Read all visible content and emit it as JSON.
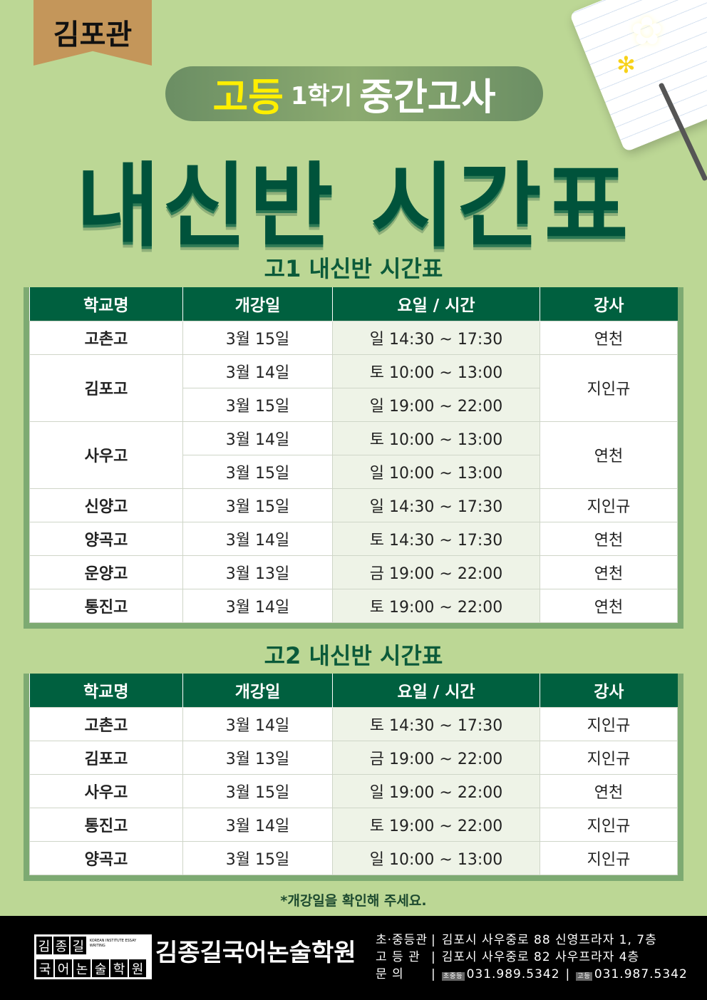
{
  "branch": "김포관",
  "banner": {
    "highlight": "고등",
    "term": "1학기",
    "exam": "중간고사"
  },
  "main_title": "내신반 시간표",
  "columns": [
    "학교명",
    "개강일",
    "요일 / 시간",
    "강사"
  ],
  "tables": [
    {
      "title": "고1 내신반 시간표",
      "schools": [
        {
          "name": "고촌고",
          "teacher": "연천",
          "sessions": [
            {
              "date": "3월 15일",
              "time": "일 14:30 ~ 17:30"
            }
          ]
        },
        {
          "name": "김포고",
          "teacher": "지인규",
          "sessions": [
            {
              "date": "3월 14일",
              "time": "토 10:00 ~ 13:00"
            },
            {
              "date": "3월 15일",
              "time": "일 19:00 ~ 22:00"
            }
          ]
        },
        {
          "name": "사우고",
          "teacher": "연천",
          "sessions": [
            {
              "date": "3월 14일",
              "time": "토 10:00 ~ 13:00"
            },
            {
              "date": "3월 15일",
              "time": "일 10:00 ~ 13:00"
            }
          ]
        },
        {
          "name": "신양고",
          "teacher": "지인규",
          "sessions": [
            {
              "date": "3월 15일",
              "time": "일 14:30 ~ 17:30"
            }
          ]
        },
        {
          "name": "양곡고",
          "teacher": "연천",
          "sessions": [
            {
              "date": "3월 14일",
              "time": "토 14:30 ~ 17:30"
            }
          ]
        },
        {
          "name": "운양고",
          "teacher": "연천",
          "sessions": [
            {
              "date": "3월 13일",
              "time": "금 19:00 ~ 22:00"
            }
          ]
        },
        {
          "name": "통진고",
          "teacher": "연천",
          "sessions": [
            {
              "date": "3월 14일",
              "time": "토 19:00 ~ 22:00"
            }
          ]
        }
      ]
    },
    {
      "title": "고2 내신반 시간표",
      "schools": [
        {
          "name": "고촌고",
          "teacher": "지인규",
          "sessions": [
            {
              "date": "3월 14일",
              "time": "토 14:30 ~ 17:30"
            }
          ]
        },
        {
          "name": "김포고",
          "teacher": "지인규",
          "sessions": [
            {
              "date": "3월 13일",
              "time": "금 19:00 ~ 22:00"
            }
          ]
        },
        {
          "name": "사우고",
          "teacher": "연천",
          "sessions": [
            {
              "date": "3월 15일",
              "time": "일 19:00 ~ 22:00"
            }
          ]
        },
        {
          "name": "통진고",
          "teacher": "지인규",
          "sessions": [
            {
              "date": "3월 14일",
              "time": "토 19:00 ~ 22:00"
            }
          ]
        },
        {
          "name": "양곡고",
          "teacher": "지인규",
          "sessions": [
            {
              "date": "3월 15일",
              "time": "일 10:00 ~ 13:00"
            }
          ]
        }
      ]
    }
  ],
  "note": "*개강일을 확인해 주세요.",
  "footer": {
    "logo_chars_top": [
      "김",
      "종",
      "길"
    ],
    "logo_chars_bottom": [
      "국",
      "어",
      "논",
      "술",
      "학",
      "원"
    ],
    "logo_en": "KOREAN INSTITUTE ESSAY WRITING",
    "brand": "김종길국어논술학원",
    "rows": [
      {
        "label": "초·중등관",
        "value": "김포시 사우중로 88 신영프라자 1, 7층"
      },
      {
        "label": "고 등 관",
        "value": "김포시 사우중로 82 사우프라자 4층"
      }
    ],
    "contact_label": "문 의",
    "phones": [
      {
        "tag": "초중등",
        "number": "031.989.5342"
      },
      {
        "tag": "고등",
        "number": "031.987.5342"
      }
    ]
  },
  "colors": {
    "background": "#bcd795",
    "header": "#00603f",
    "title": "#00533b",
    "highlight": "#ffef00"
  }
}
